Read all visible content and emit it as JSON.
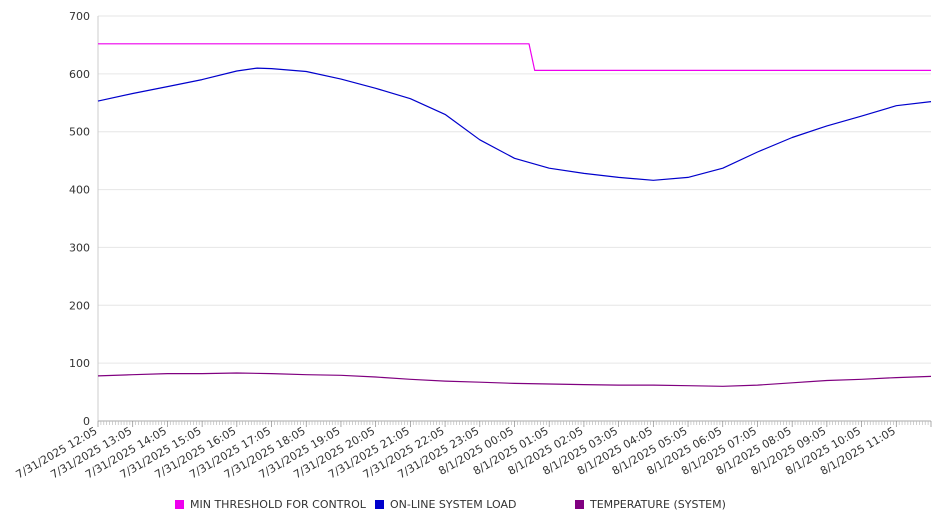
{
  "chart_data": {
    "type": "line",
    "title": "",
    "xlabel": "",
    "ylabel": "",
    "ylim": [
      0,
      700
    ],
    "yticks": [
      0,
      100,
      200,
      300,
      400,
      500,
      600,
      700
    ],
    "grid": true,
    "legend_placement": "bottom",
    "x_tick_labels": [
      "7/31/2025 12:05",
      "7/31/2025 13:05",
      "7/31/2025 14:05",
      "7/31/2025 15:05",
      "7/31/2025 16:05",
      "7/31/2025 17:05",
      "7/31/2025 18:05",
      "7/31/2025 19:05",
      "7/31/2025 20:05",
      "7/31/2025 21:05",
      "7/31/2025 22:05",
      "7/31/2025 23:05",
      "8/1/2025 00:05",
      "8/1/2025 01:05",
      "8/1/2025 02:05",
      "8/1/2025 03:05",
      "8/1/2025 04:05",
      "8/1/2025 05:05",
      "8/1/2025 06:05",
      "8/1/2025 07:05",
      "8/1/2025 08:05",
      "8/1/2025 09:05",
      "8/1/2025 10:05",
      "8/1/2025 11:05"
    ],
    "x_end": "8/1/2025 12:05",
    "series": [
      {
        "name": "MIN THRESHOLD FOR CONTROL",
        "color": "#ee00ee",
        "points": [
          [
            "7/31/2025 12:05",
            652
          ],
          [
            "8/1/2025 00:30",
            652
          ],
          [
            "8/1/2025 00:40",
            606
          ],
          [
            "8/1/2025 12:05",
            606
          ]
        ]
      },
      {
        "name": "ON-LINE SYSTEM LOAD",
        "color": "#0000cc",
        "points": [
          [
            "7/31/2025 12:05",
            553
          ],
          [
            "7/31/2025 13:05",
            566
          ],
          [
            "7/31/2025 14:05",
            578
          ],
          [
            "7/31/2025 15:05",
            590
          ],
          [
            "7/31/2025 16:05",
            605
          ],
          [
            "7/31/2025 16:40",
            610
          ],
          [
            "7/31/2025 17:05",
            609
          ],
          [
            "7/31/2025 18:05",
            604
          ],
          [
            "7/31/2025 19:05",
            591
          ],
          [
            "7/31/2025 20:05",
            575
          ],
          [
            "7/31/2025 21:05",
            557
          ],
          [
            "7/31/2025 22:05",
            530
          ],
          [
            "7/31/2025 23:05",
            486
          ],
          [
            "8/1/2025 00:05",
            454
          ],
          [
            "8/1/2025 01:05",
            437
          ],
          [
            "8/1/2025 02:05",
            428
          ],
          [
            "8/1/2025 03:05",
            421
          ],
          [
            "8/1/2025 04:05",
            416
          ],
          [
            "8/1/2025 05:05",
            421
          ],
          [
            "8/1/2025 06:05",
            437
          ],
          [
            "8/1/2025 07:05",
            465
          ],
          [
            "8/1/2025 08:05",
            490
          ],
          [
            "8/1/2025 09:05",
            510
          ],
          [
            "8/1/2025 10:05",
            527
          ],
          [
            "8/1/2025 11:05",
            545
          ],
          [
            "8/1/2025 12:05",
            552
          ]
        ]
      },
      {
        "name": "TEMPERATURE (SYSTEM)",
        "color": "#800080",
        "points": [
          [
            "7/31/2025 12:05",
            78
          ],
          [
            "7/31/2025 13:05",
            80
          ],
          [
            "7/31/2025 14:05",
            82
          ],
          [
            "7/31/2025 15:05",
            82
          ],
          [
            "7/31/2025 16:05",
            83
          ],
          [
            "7/31/2025 17:05",
            82
          ],
          [
            "7/31/2025 18:05",
            80
          ],
          [
            "7/31/2025 19:05",
            79
          ],
          [
            "7/31/2025 20:05",
            76
          ],
          [
            "7/31/2025 21:05",
            72
          ],
          [
            "7/31/2025 22:05",
            69
          ],
          [
            "7/31/2025 23:05",
            67
          ],
          [
            "8/1/2025 00:05",
            65
          ],
          [
            "8/1/2025 01:05",
            64
          ],
          [
            "8/1/2025 02:05",
            63
          ],
          [
            "8/1/2025 03:05",
            62
          ],
          [
            "8/1/2025 04:05",
            62
          ],
          [
            "8/1/2025 05:05",
            61
          ],
          [
            "8/1/2025 06:05",
            60
          ],
          [
            "8/1/2025 07:05",
            62
          ],
          [
            "8/1/2025 08:05",
            66
          ],
          [
            "8/1/2025 09:05",
            70
          ],
          [
            "8/1/2025 10:05",
            72
          ],
          [
            "8/1/2025 11:05",
            75
          ],
          [
            "8/1/2025 12:05",
            77
          ]
        ]
      }
    ]
  }
}
